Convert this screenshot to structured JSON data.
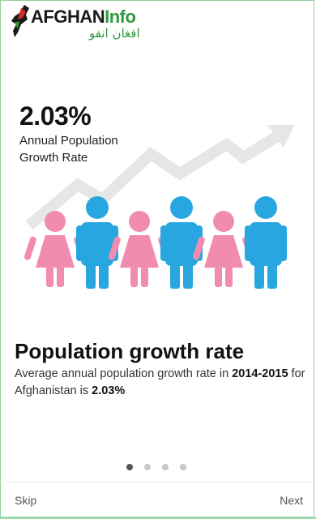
{
  "header": {
    "logo_text_primary": "AFGHAN",
    "logo_text_accent": "Info",
    "logo_subtitle": "افغان انفو"
  },
  "slide": {
    "stat_value": "2.03%",
    "stat_label_line1": "Annual Population",
    "stat_label_line2": "Growth Rate",
    "title": "Population growth rate",
    "desc_prefix": "Average annual population growth rate in ",
    "desc_years": "2014-2015",
    "desc_mid": " for Afghanistan is ",
    "desc_value": "2.03%"
  },
  "pager": {
    "total": 4,
    "active_index": 0
  },
  "nav": {
    "skip_label": "Skip",
    "next_label": "Next"
  },
  "colors": {
    "female": "#f28bb0",
    "male": "#27a6df",
    "arrow": "#e6e6e6",
    "brand_green": "#2f9a3e"
  }
}
